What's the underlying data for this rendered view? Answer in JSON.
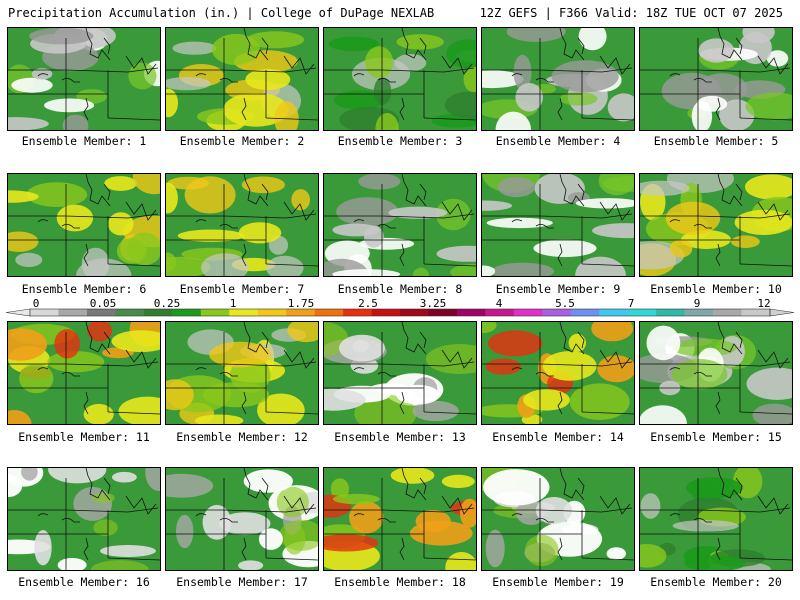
{
  "header": {
    "title": "Precipitation Accumulation (in.) | College of DuPage NEXLAB",
    "run_info": "12Z GEFS | F366 Valid: 18Z TUE OCT 07 2025"
  },
  "colorbar": {
    "tick_labels": [
      "0",
      "0.05",
      "0.25",
      "1",
      "1.75",
      "2.5",
      "3.25",
      "4",
      "5.5",
      "7",
      "9",
      "12"
    ],
    "colors": [
      "#d8d8d8",
      "#a8a8a8",
      "#7a7a7a",
      "#4a8a4a",
      "#2f7f2f",
      "#1c9a1c",
      "#8ac81c",
      "#e8e81c",
      "#f0c818",
      "#f0a018",
      "#f07010",
      "#e83010",
      "#c81010",
      "#a00818",
      "#800028",
      "#a00068",
      "#c81890",
      "#e030c8",
      "#a860e0",
      "#7090f0",
      "#40c8f0",
      "#30d8d8",
      "#30b8a8",
      "#80a8a8",
      "#a8a8a8",
      "#c8c8c8"
    ]
  },
  "panels": [
    {
      "label": "Ensemble Member: 1",
      "tone": "gray"
    },
    {
      "label": "Ensemble Member: 2",
      "tone": "yellow"
    },
    {
      "label": "Ensemble Member: 3",
      "tone": "green"
    },
    {
      "label": "Ensemble Member: 4",
      "tone": "gray"
    },
    {
      "label": "Ensemble Member: 5",
      "tone": "gray"
    },
    {
      "label": "Ensemble Member: 6",
      "tone": "yellow"
    },
    {
      "label": "Ensemble Member: 7",
      "tone": "yellow"
    },
    {
      "label": "Ensemble Member: 8",
      "tone": "gray"
    },
    {
      "label": "Ensemble Member: 9",
      "tone": "gray"
    },
    {
      "label": "Ensemble Member: 10",
      "tone": "yellow"
    },
    {
      "label": "Ensemble Member: 11",
      "tone": "orange"
    },
    {
      "label": "Ensemble Member: 12",
      "tone": "yellow"
    },
    {
      "label": "Ensemble Member: 13",
      "tone": "white"
    },
    {
      "label": "Ensemble Member: 14",
      "tone": "orange"
    },
    {
      "label": "Ensemble Member: 15",
      "tone": "gray"
    },
    {
      "label": "Ensemble Member: 16",
      "tone": "white"
    },
    {
      "label": "Ensemble Member: 17",
      "tone": "white"
    },
    {
      "label": "Ensemble Member: 18",
      "tone": "orange"
    },
    {
      "label": "Ensemble Member: 19",
      "tone": "white"
    },
    {
      "label": "Ensemble Member: 20",
      "tone": "green"
    }
  ]
}
